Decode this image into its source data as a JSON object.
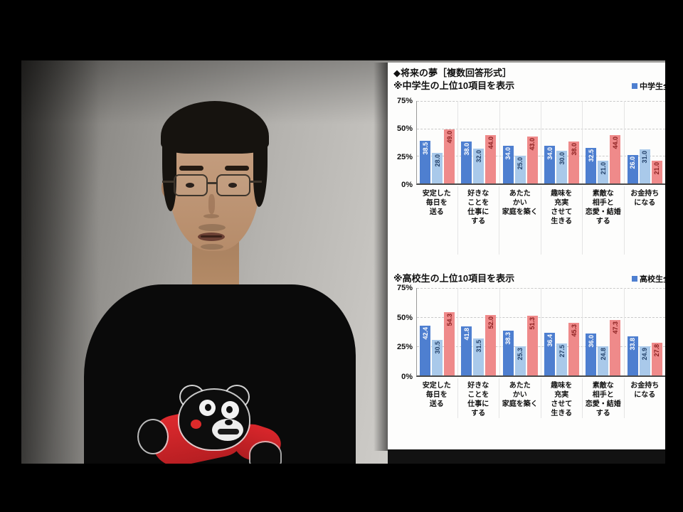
{
  "accent_colors": {
    "bar_dark_blue": "#4e7fd0",
    "bar_light_blue": "#a9c9ea",
    "bar_red": "#ef8a8a"
  },
  "chart_data": [
    {
      "type": "bar",
      "title": "◆将来の夢［複数回答形式］",
      "subtitle": "※中学生の上位10項目を表示",
      "legend_label": "中学生全",
      "ylim": [
        0,
        75
      ],
      "yticks": [
        "75%",
        "50%",
        "25%",
        "0%"
      ],
      "grid": true,
      "legend_position": "top-right",
      "categories": [
        "安定した\n毎日を\n送る",
        "好きな\nことを\n仕事に\nする",
        "あたた\nかい\n家庭を築く",
        "趣味を\n充実\nさせて\n生きる",
        "素敵な\n相手と\n恋愛・結婚\nする",
        "お金持ち\nになる"
      ],
      "series": [
        {
          "name": "dark-blue",
          "color": "#4e7fd0",
          "label_color": "#ffffff",
          "values": [
            38.5,
            38.0,
            34.0,
            34.0,
            32.5,
            26.0
          ]
        },
        {
          "name": "light-blue",
          "color": "#a9c9ea",
          "label_color": "#24426b",
          "values": [
            28.0,
            32.0,
            25.0,
            30.0,
            21.0,
            31.0
          ]
        },
        {
          "name": "red",
          "color": "#ef8a8a",
          "label_color": "#8a1f1f",
          "values": [
            49.0,
            44.0,
            43.0,
            38.0,
            44.0,
            21.0
          ]
        }
      ]
    },
    {
      "type": "bar",
      "title": "",
      "subtitle": "※高校生の上位10項目を表示",
      "legend_label": "高校生全",
      "ylim": [
        0,
        75
      ],
      "yticks": [
        "75%",
        "50%",
        "25%",
        "0%"
      ],
      "grid": true,
      "legend_position": "top-right",
      "categories": [
        "安定した\n毎日を\n送る",
        "好きな\nことを\n仕事に\nする",
        "あたた\nかい\n家庭を築く",
        "趣味を\n充実\nさせて\n生きる",
        "素敵な\n相手と\n恋愛・結婚\nする",
        "お金持ち\nになる"
      ],
      "series": [
        {
          "name": "dark-blue",
          "color": "#4e7fd0",
          "label_color": "#ffffff",
          "values": [
            42.4,
            41.8,
            38.3,
            36.4,
            36.0,
            33.8
          ]
        },
        {
          "name": "light-blue",
          "color": "#a9c9ea",
          "label_color": "#24426b",
          "values": [
            30.5,
            31.5,
            25.3,
            27.5,
            24.8,
            24.9
          ]
        },
        {
          "name": "red",
          "color": "#ef8a8a",
          "label_color": "#8a1f1f",
          "values": [
            54.3,
            52.0,
            51.3,
            45.3,
            47.3,
            27.8
          ]
        }
      ]
    }
  ]
}
